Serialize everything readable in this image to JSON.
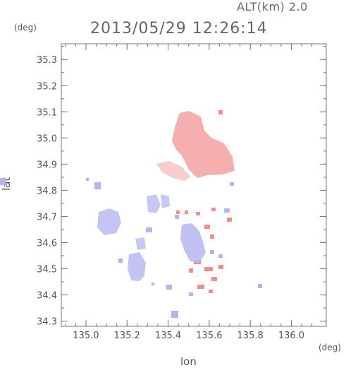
{
  "header": {
    "altitude_label": "ALT(km) 2.0",
    "timestamp": "2013/05/29 12:26:14"
  },
  "axes": {
    "y_unit": "(deg)",
    "x_unit": "(deg)",
    "y_label": "lat",
    "x_label": "lon",
    "x_range": [
      134.88,
      136.17
    ],
    "y_range": [
      34.28,
      35.36
    ],
    "x_ticks": [
      "135.0",
      "135.2",
      "135.4",
      "135.6",
      "135.8",
      "136.0"
    ],
    "y_ticks": [
      "34.3",
      "34.4",
      "34.5",
      "34.6",
      "34.7",
      "34.8",
      "34.9",
      "35.0",
      "35.1",
      "35.2",
      "35.3"
    ]
  },
  "colors": {
    "positive": "#f2a0a0",
    "negative": "#b8b8f2",
    "frame": "#777777"
  }
}
